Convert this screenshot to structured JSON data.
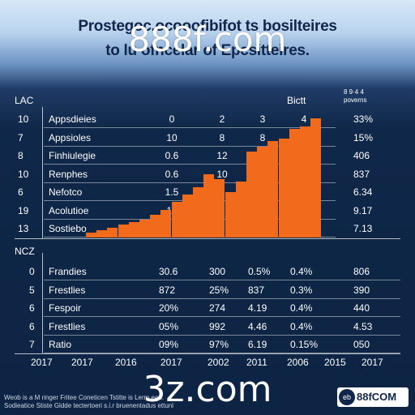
{
  "header": {
    "title_line1": "Prostegoc.ocooofibifot ts bosilteires",
    "title_line2": "to lu ofncelar of Epcsitteires.",
    "watermark_top": "888f.com"
  },
  "top_table": {
    "corner_label": "LAC",
    "right_header": "Bictt",
    "right_header_2": "8 9·4 4\npoverns",
    "rows": [
      {
        "idx": "10",
        "label": "Appsdieies",
        "a": "0",
        "b": "2",
        "c": "3",
        "d": "4",
        "right": "33%"
      },
      {
        "idx": "7",
        "label": "Appsioles",
        "a": "10",
        "b": "8",
        "c": "8",
        "d": "6",
        "right": "15%"
      },
      {
        "idx": "8",
        "label": "Finhiulegie",
        "a": "0.6",
        "b": "12",
        "c": "15",
        "d": "",
        "right": "406"
      },
      {
        "idx": "10",
        "label": "Renphes",
        "a": "0.6",
        "b": "10",
        "c": "",
        "d": "",
        "right": "837"
      },
      {
        "idx": "6",
        "label": "Nefotco",
        "a": "1.5",
        "b": "",
        "c": "",
        "d": "",
        "right": "6.34"
      },
      {
        "idx": "19",
        "label": "Acolutioe",
        "a": "12",
        "b": "",
        "c": "",
        "d": "",
        "right": "9.17"
      },
      {
        "idx": "13",
        "label": "Sostiebo",
        "a": "",
        "b": "",
        "c": "",
        "d": "",
        "right": "7.13"
      }
    ]
  },
  "section_label": "NCZ",
  "bottom_table": {
    "rows": [
      {
        "idx": "0",
        "label": "Frandies",
        "cols": [
          "30.6",
          "300",
          "0.5%",
          "0.4%",
          "806"
        ]
      },
      {
        "idx": "5",
        "label": "Frestlies",
        "cols": [
          "872",
          "25%",
          "837",
          "0.3%",
          "390"
        ]
      },
      {
        "idx": "6",
        "label": "Fespoir",
        "cols": [
          "20%",
          "274",
          "4.19",
          "0.4%",
          "440"
        ]
      },
      {
        "idx": "6",
        "label": "Frestlies",
        "cols": [
          "05%",
          "992",
          "4.46",
          "0.4%",
          "4.53"
        ]
      },
      {
        "idx": "7",
        "label": "Ratio",
        "cols": [
          "09%",
          "97%",
          "6.19",
          "0.15%",
          "050"
        ]
      }
    ]
  },
  "x_axis_labels": [
    "2017",
    "2017",
    "2016",
    "2017",
    "2002",
    "2011",
    "2006",
    "2015",
    "2017"
  ],
  "footer": {
    "line1": "Weob is a M  ringer Fritee Coneticen Tstitte  is Lerm eeo.",
    "line2": "Sodieatice Stiste Gldde tectertoeri s.i.r bruenentadus ettunl",
    "watermark_bottom": "3z.com",
    "brand": "88fCOM",
    "brand_mark": "eb"
  },
  "colors": {
    "bar": "#f26a1b",
    "navy": "#0d2444",
    "title": "#10254a"
  },
  "chart_data": {
    "type": "bar",
    "title": "Prostegoc.ocooofibifot ts bosilteires to lu ofncelar of Epcsitteires.",
    "values": [
      1,
      1.5,
      2,
      2.5,
      3,
      3.5,
      4.5,
      5.5,
      7,
      8.5,
      10,
      12.5,
      11.5,
      9,
      11,
      17,
      18,
      19,
      19.5,
      21.5,
      22,
      23.5
    ],
    "ylim": [
      0,
      24
    ],
    "grid": true,
    "legend": "none"
  }
}
